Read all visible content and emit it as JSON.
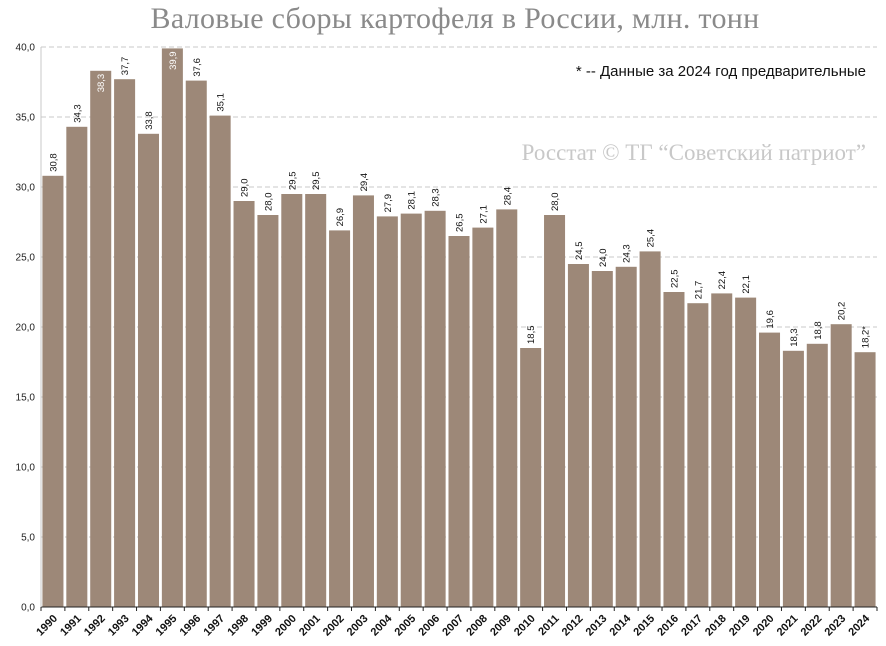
{
  "chart_data": {
    "type": "bar",
    "title": "Валовые сборы картофеля в России, млн. тонн",
    "note": "* -- Данные за 2024 год предварительные",
    "watermark": "Росстат © ТГ “Советский патриот”",
    "categories": [
      "1990",
      "1991",
      "1992",
      "1993",
      "1994",
      "1995",
      "1996",
      "1997",
      "1998",
      "1999",
      "2000",
      "2001",
      "2002",
      "2003",
      "2004",
      "2005",
      "2006",
      "2007",
      "2008",
      "2009",
      "2010",
      "2011",
      "2012",
      "2013",
      "2014",
      "2015",
      "2016",
      "2017",
      "2018",
      "2019",
      "2020",
      "2021",
      "2022",
      "2023",
      "2024"
    ],
    "values": [
      30.8,
      34.3,
      38.3,
      37.7,
      33.8,
      39.9,
      37.6,
      35.1,
      29.0,
      28.0,
      29.5,
      29.5,
      26.9,
      29.4,
      27.9,
      28.1,
      28.3,
      26.5,
      27.1,
      28.4,
      18.5,
      28.0,
      24.5,
      24.0,
      24.3,
      25.4,
      22.5,
      21.7,
      22.4,
      22.1,
      19.6,
      18.3,
      18.8,
      20.2,
      18.2
    ],
    "data_labels": [
      "30,8",
      "34,3",
      "38,3",
      "37,7",
      "33,8",
      "39,9",
      "37,6",
      "35,1",
      "29,0",
      "28,0",
      "29,5",
      "29,5",
      "26,9",
      "29,4",
      "27,9",
      "28,1",
      "28,3",
      "26,5",
      "27,1",
      "28,4",
      "18,5",
      "28,0",
      "24,5",
      "24,0",
      "24,3",
      "25,4",
      "22,5",
      "21,7",
      "22,4",
      "22,1",
      "19,6",
      "18,3",
      "18,8",
      "20,2",
      "18,2*"
    ],
    "y_tick_labels": [
      "0,0",
      "5,0",
      "10,0",
      "15,0",
      "20,0",
      "25,0",
      "30,0",
      "35,0",
      "40,0"
    ],
    "y_ticks": [
      0,
      5,
      10,
      15,
      20,
      25,
      30,
      35,
      40
    ],
    "ylim": [
      0,
      40
    ],
    "xlabel": "",
    "ylabel": "",
    "grid": "horizontal dashed",
    "legend": "none",
    "bar_color": "#9d8878",
    "grid_color": "#c8c8c8"
  }
}
